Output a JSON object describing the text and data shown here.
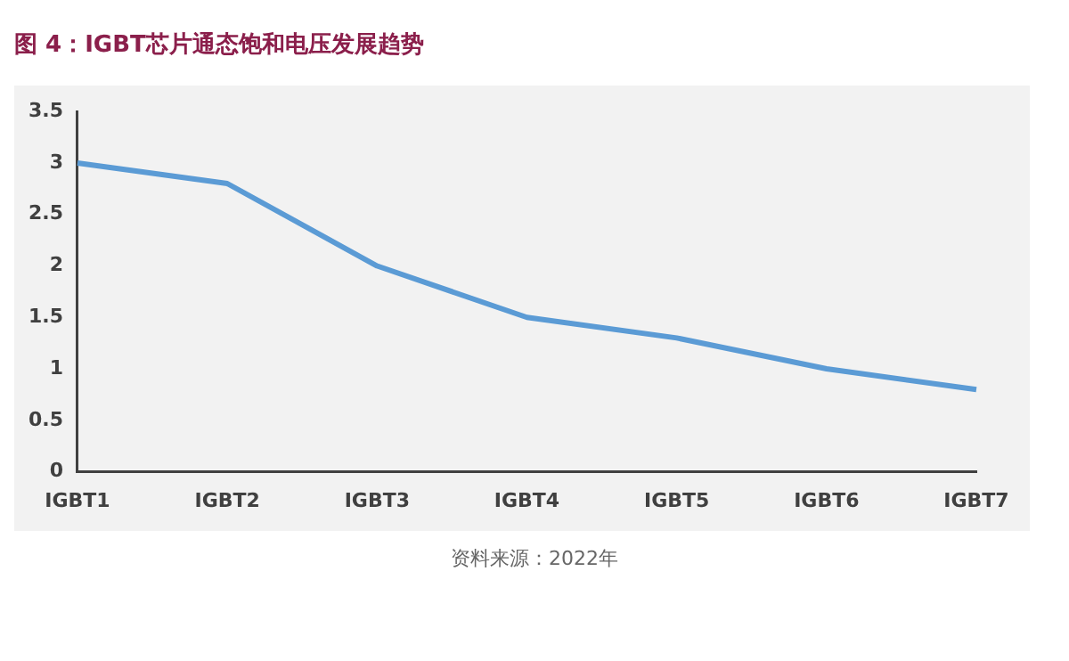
{
  "chart_data": {
    "type": "line",
    "title": "图 4：IGBT芯片通态饱和电压发展趋势",
    "categories": [
      "IGBT1",
      "IGBT2",
      "IGBT3",
      "IGBT4",
      "IGBT5",
      "IGBT6",
      "IGBT7"
    ],
    "series": [
      {
        "color": "#5b9bd5",
        "values": [
          3,
          2.8,
          2,
          1.5,
          1.3,
          1,
          0.8
        ]
      }
    ],
    "ylim": [
      0,
      3.5
    ],
    "yticks": [
      0,
      0.5,
      1,
      1.5,
      2,
      2.5,
      3,
      3.5
    ],
    "grid": false,
    "legend": false,
    "marker": "none",
    "line_style": "solid",
    "annotations": [
      "资料来源：2022年"
    ]
  }
}
